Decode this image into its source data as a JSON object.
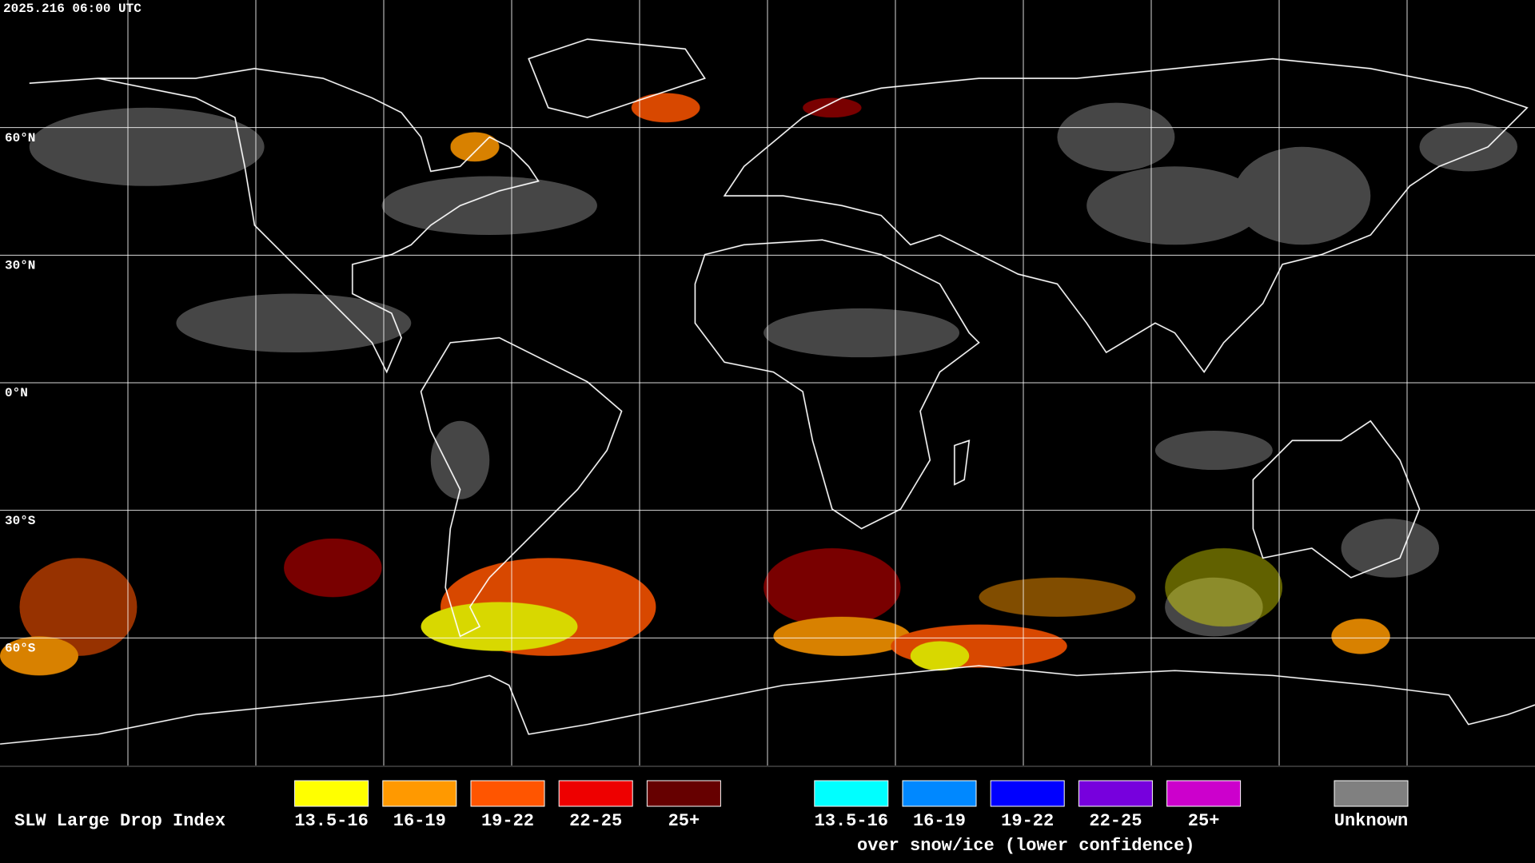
{
  "header": {
    "timestamp": "2025.216 06:00 UTC"
  },
  "map": {
    "lat_labels": [
      "60°N",
      "30°N",
      "0°N",
      "30°S",
      "60°S"
    ]
  },
  "legend": {
    "title": "SLW Large Drop Index",
    "liquid": [
      {
        "label": "13.5-16",
        "color": "#ffff00"
      },
      {
        "label": "16-19",
        "color": "#ff9900"
      },
      {
        "label": "19-22",
        "color": "#ff5500"
      },
      {
        "label": "22-25",
        "color": "#ee0000"
      },
      {
        "label": "25+",
        "color": "#660000"
      }
    ],
    "snow_ice": [
      {
        "label": "13.5-16",
        "color": "#00ffff"
      },
      {
        "label": "16-19",
        "color": "#0088ff"
      },
      {
        "label": "19-22",
        "color": "#0000ff"
      },
      {
        "label": "22-25",
        "color": "#7700dd"
      },
      {
        "label": "25+",
        "color": "#cc00cc"
      }
    ],
    "snow_ice_caption": "over snow/ice (lower confidence)",
    "unknown": {
      "label": "Unknown",
      "color": "#808080"
    }
  }
}
